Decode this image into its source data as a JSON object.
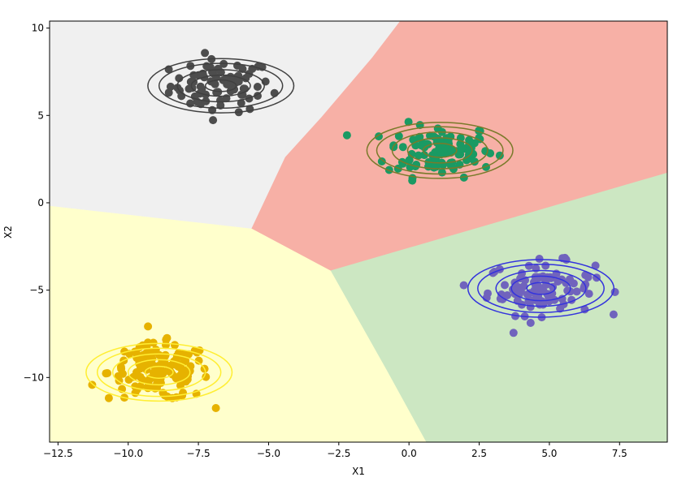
{
  "chart_data": {
    "type": "scatter",
    "title": "",
    "xlabel": "X1",
    "ylabel": "X2",
    "xlim": [
      -12.8,
      9.2
    ],
    "ylim": [
      -13.7,
      10.4
    ],
    "xticks": [
      -12.5,
      -10.0,
      -7.5,
      -5.0,
      -2.5,
      0.0,
      2.5,
      5.0,
      7.5
    ],
    "xtick_labels": [
      "−12.5",
      "−10.0",
      "−7.5",
      "−5.0",
      "−2.5",
      "0.0",
      "2.5",
      "5.0",
      "7.5"
    ],
    "yticks": [
      10,
      5,
      0,
      -5,
      -10
    ],
    "ytick_labels": [
      "10",
      "5",
      "0",
      "−5",
      "−10"
    ],
    "grid": false,
    "legend": "none",
    "regions": [
      {
        "cluster": "dark",
        "fill": "#f0f0f0",
        "polygon": [
          [
            -12.8,
            10.4
          ],
          [
            -0.3,
            10.4
          ],
          [
            -1.3,
            8.3
          ],
          [
            -3.1,
            4.9
          ],
          [
            -4.4,
            2.6
          ],
          [
            -5.6,
            -1.5
          ],
          [
            -12.8,
            -0.2
          ]
        ]
      },
      {
        "cluster": "green",
        "fill": "#f7b0a6",
        "polygon": [
          [
            -0.3,
            10.4
          ],
          [
            9.2,
            10.4
          ],
          [
            9.2,
            1.7
          ],
          [
            -2.8,
            -3.9
          ],
          [
            -5.6,
            -1.5
          ],
          [
            -4.4,
            2.6
          ],
          [
            -3.1,
            4.9
          ],
          [
            -1.3,
            8.3
          ]
        ]
      },
      {
        "cluster": "purple",
        "fill": "#cce7c2",
        "polygon": [
          [
            9.2,
            1.7
          ],
          [
            9.2,
            -13.7
          ],
          [
            0.6,
            -13.7
          ],
          [
            -0.8,
            -9.6
          ],
          [
            -2.8,
            -3.9
          ]
        ]
      },
      {
        "cluster": "yellow",
        "fill": "#ffffcc",
        "polygon": [
          [
            -12.8,
            -0.2
          ],
          [
            -5.6,
            -1.5
          ],
          [
            -2.8,
            -3.9
          ],
          [
            -0.8,
            -9.6
          ],
          [
            0.6,
            -13.7
          ],
          [
            -12.8,
            -13.7
          ]
        ]
      }
    ],
    "series": [
      {
        "cluster": "dark",
        "color": "#4d4d4d",
        "center": [
          -6.7,
          6.7
        ],
        "spread": [
          0.9,
          0.75
        ],
        "n": 80,
        "contour_radii": [
          [
            0.55,
            0.33
          ],
          [
            1.05,
            0.6
          ],
          [
            1.55,
            0.92
          ],
          [
            2.2,
            1.28
          ],
          [
            2.6,
            1.55
          ]
        ]
      },
      {
        "cluster": "green",
        "color": "#1a9a63",
        "center": [
          1.1,
          3.0
        ],
        "spread": [
          0.95,
          0.75
        ],
        "n": 110,
        "contour_radii": [
          [
            0.6,
            0.4
          ],
          [
            1.15,
            0.72
          ],
          [
            1.7,
            1.05
          ],
          [
            2.25,
            1.35
          ],
          [
            2.6,
            1.6
          ]
        ]
      },
      {
        "cluster": "purple",
        "color": "#7063bd",
        "center": [
          4.7,
          -4.9
        ],
        "spread": [
          0.95,
          0.75
        ],
        "n": 100,
        "contour_radii": [
          [
            0.5,
            0.34
          ],
          [
            1.05,
            0.7
          ],
          [
            1.6,
            1.02
          ],
          [
            2.25,
            1.38
          ],
          [
            2.6,
            1.65
          ]
        ]
      },
      {
        "cluster": "yellow",
        "color": "#e6b200",
        "center": [
          -8.9,
          -9.7
        ],
        "spread": [
          0.9,
          0.8
        ],
        "n": 150,
        "contour_radii": [
          [
            0.5,
            0.34
          ],
          [
            1.1,
            0.72
          ],
          [
            1.65,
            1.05
          ],
          [
            2.2,
            1.38
          ],
          [
            2.6,
            1.65
          ]
        ]
      }
    ],
    "contour_colors": {
      "dark": "#404040",
      "green": "#7a7a2a",
      "purple": "#3333dd",
      "yellow": "#ffee33"
    }
  }
}
